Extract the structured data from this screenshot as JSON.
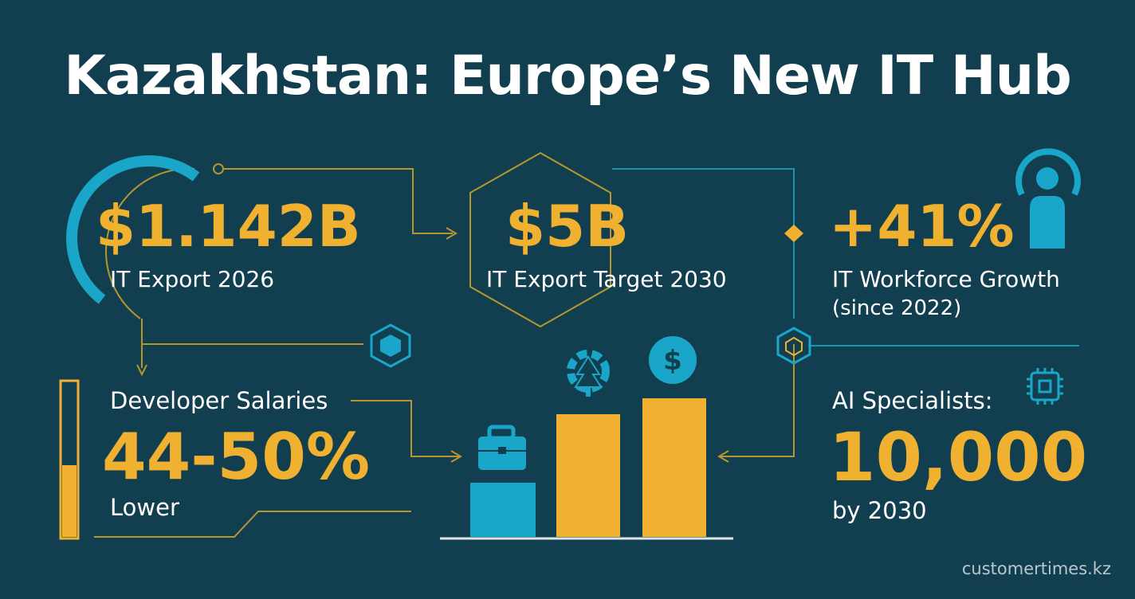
{
  "title": "Kazakhstan: Europe’s New IT Hub",
  "stats": {
    "export_2026": {
      "value": "$1.142B",
      "label": "IT Export 2026"
    },
    "export_target": {
      "value": "$5B",
      "label": "IT Export Target 2030"
    },
    "workforce": {
      "value": "+41%",
      "label": "IT Workforce Growth",
      "sublabel": "(since 2022)"
    },
    "salaries": {
      "heading": "Developer Salaries",
      "value": "44-50%",
      "label": "Lower"
    },
    "ai": {
      "heading": "AI Specialists:",
      "value": "10,000",
      "label": "by 2030"
    }
  },
  "icons": {
    "person": "person-icon",
    "chip": "chip-icon",
    "briefcase": "briefcase-icon",
    "gear": "gear-icon",
    "dollar_symbol": "$",
    "hexagon_small": "hexagon-icon"
  },
  "colors": {
    "background": "#113f4f",
    "accent_gold": "#f0b030",
    "accent_cyan": "#1aa6c8",
    "text": "#ffffff"
  },
  "credit": "customertimes.kz"
}
